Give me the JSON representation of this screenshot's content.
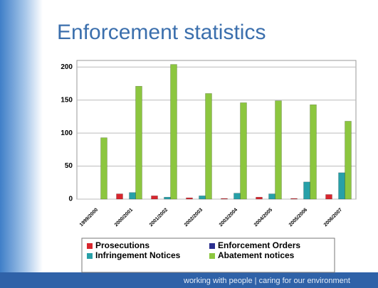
{
  "chart_data": {
    "type": "bar",
    "title": "Enforcement statistics",
    "categories": [
      "1999/2000",
      "2000/2001",
      "2001/2002",
      "2002/2003",
      "2003/2004",
      "2004/2005",
      "2005/2006",
      "2006/2007"
    ],
    "series": [
      {
        "name": "Prosecutions",
        "color": "#d8262e",
        "values": [
          0,
          8,
          5,
          2,
          1,
          3,
          1,
          7
        ]
      },
      {
        "name": "Enforcement Orders",
        "color": "#2b2f8f",
        "values": [
          0,
          0,
          0,
          0,
          0,
          0,
          0,
          0
        ]
      },
      {
        "name": "Infringement Notices",
        "color": "#27a0a8",
        "values": [
          0,
          10,
          3,
          5,
          9,
          8,
          26,
          40
        ]
      },
      {
        "name": "Abatement notices",
        "color": "#8cc63f",
        "values": [
          93,
          171,
          204,
          160,
          146,
          149,
          143,
          118
        ]
      }
    ],
    "ylim": [
      0,
      210
    ],
    "yticks": [
      0,
      50,
      100,
      150,
      200
    ],
    "grid": true,
    "footer": "working with people | caring for our environment"
  }
}
